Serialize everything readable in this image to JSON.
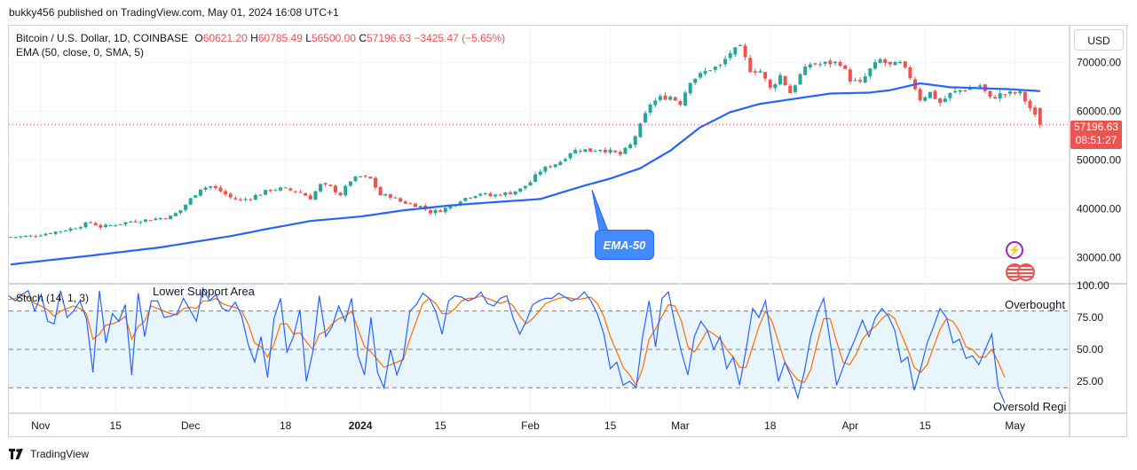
{
  "header": {
    "publisher": "bukky456 published on TradingView.com, May 01, 2024 16:08 UTC+1"
  },
  "legend": {
    "symbol": "Bitcoin / U.S. Dollar, 1D, COINBASE",
    "o_label": "O",
    "o": "60621.20",
    "h_label": "H",
    "h": "60785.49",
    "l_label": "L",
    "l": "56500.00",
    "c_label": "C",
    "c": "57196.63",
    "change": "−3425.47 (−5.65%)",
    "ema": "EMA (50, close, 0, SMA, 5)",
    "stoch": "Stoch (14, 1, 3)"
  },
  "currency_button": "USD",
  "price_tag": {
    "price": "57196.63",
    "countdown": "08:51:27"
  },
  "annotations": {
    "ema_callout": "EMA-50",
    "lower_support": "Lower Support Area",
    "overbought": "Overbought",
    "oversold": "Oversold Regi"
  },
  "footer": {
    "brand": "TradingView"
  },
  "colors": {
    "up": "#26a69a",
    "down": "#ef5350",
    "ema": "#2962ff",
    "stoch_k": "#2962ff",
    "stoch_d": "#ff6d00",
    "stoch_band": "#e3f2fd"
  },
  "chart_data": [
    {
      "type": "candlestick",
      "title": "Bitcoin / U.S. Dollar, 1D, COINBASE",
      "ylim": [
        25000,
        77500
      ],
      "y_ticks": [
        "70000.00",
        "60000.00",
        "50000.00",
        "40000.00",
        "30000.00"
      ],
      "x_ticks": [
        "Nov",
        "15",
        "Dec",
        "18",
        "2024",
        "15",
        "Feb",
        "15",
        "Mar",
        "18",
        "Apr",
        "15",
        "May"
      ],
      "last_close": 57196.63,
      "price_path": [
        [
          0,
          34200
        ],
        [
          4,
          34400
        ],
        [
          8,
          35100
        ],
        [
          12,
          35900
        ],
        [
          16,
          37200
        ],
        [
          18,
          36300
        ],
        [
          20,
          36600
        ],
        [
          24,
          37400
        ],
        [
          28,
          37800
        ],
        [
          32,
          38400
        ],
        [
          34,
          39700
        ],
        [
          36,
          42000
        ],
        [
          38,
          44200
        ],
        [
          40,
          44600
        ],
        [
          42,
          43600
        ],
        [
          44,
          42300
        ],
        [
          46,
          41700
        ],
        [
          48,
          42300
        ],
        [
          52,
          43900
        ],
        [
          54,
          44100
        ],
        [
          56,
          43800
        ],
        [
          58,
          43300
        ],
        [
          60,
          42200
        ],
        [
          62,
          44900
        ],
        [
          64,
          44400
        ],
        [
          66,
          42900
        ],
        [
          68,
          45800
        ],
        [
          70,
          46600
        ],
        [
          72,
          46100
        ],
        [
          74,
          42800
        ],
        [
          76,
          42600
        ],
        [
          78,
          41500
        ],
        [
          80,
          41000
        ],
        [
          82,
          40500
        ],
        [
          84,
          39300
        ],
        [
          86,
          39700
        ],
        [
          88,
          40500
        ],
        [
          90,
          41800
        ],
        [
          92,
          42600
        ],
        [
          94,
          43200
        ],
        [
          96,
          42600
        ],
        [
          98,
          43000
        ],
        [
          100,
          43300
        ],
        [
          102,
          44000
        ],
        [
          104,
          45500
        ],
        [
          106,
          47800
        ],
        [
          108,
          48800
        ],
        [
          110,
          49700
        ],
        [
          112,
          51600
        ],
        [
          114,
          52200
        ],
        [
          116,
          51900
        ],
        [
          118,
          52300
        ],
        [
          120,
          51700
        ],
        [
          122,
          51100
        ],
        [
          124,
          53000
        ],
        [
          126,
          57000
        ],
        [
          128,
          61500
        ],
        [
          130,
          62700
        ],
        [
          132,
          63000
        ],
        [
          134,
          61700
        ],
        [
          136,
          66300
        ],
        [
          138,
          67400
        ],
        [
          140,
          68700
        ],
        [
          142,
          69200
        ],
        [
          144,
          72000
        ],
        [
          146,
          72900
        ],
        [
          148,
          68500
        ],
        [
          150,
          68200
        ],
        [
          152,
          64600
        ],
        [
          154,
          67300
        ],
        [
          156,
          63800
        ],
        [
          158,
          67400
        ],
        [
          160,
          69700
        ],
        [
          162,
          69600
        ],
        [
          164,
          69900
        ],
        [
          166,
          69900
        ],
        [
          168,
          66500
        ],
        [
          170,
          65600
        ],
        [
          172,
          68500
        ],
        [
          174,
          70500
        ],
        [
          176,
          69300
        ],
        [
          178,
          69700
        ],
        [
          180,
          67000
        ],
        [
          182,
          62500
        ],
        [
          184,
          63800
        ],
        [
          186,
          61700
        ],
        [
          188,
          63500
        ],
        [
          190,
          64300
        ],
        [
          192,
          64700
        ],
        [
          194,
          65300
        ],
        [
          196,
          62600
        ],
        [
          198,
          63400
        ],
        [
          200,
          63600
        ],
        [
          202,
          63700
        ],
        [
          204,
          60600
        ],
        [
          206,
          57196.63
        ]
      ],
      "ema_path": [
        [
          0,
          28600
        ],
        [
          16,
          30400
        ],
        [
          30,
          32100
        ],
        [
          44,
          34400
        ],
        [
          52,
          36000
        ],
        [
          60,
          37500
        ],
        [
          70,
          38400
        ],
        [
          78,
          39600
        ],
        [
          88,
          40700
        ],
        [
          96,
          41300
        ],
        [
          106,
          42000
        ],
        [
          114,
          44500
        ],
        [
          120,
          46200
        ],
        [
          126,
          48300
        ],
        [
          132,
          51900
        ],
        [
          138,
          56700
        ],
        [
          144,
          59800
        ],
        [
          150,
          61500
        ],
        [
          158,
          62700
        ],
        [
          164,
          63600
        ],
        [
          172,
          63800
        ],
        [
          176,
          64300
        ],
        [
          182,
          65700
        ],
        [
          188,
          64900
        ],
        [
          194,
          64700
        ],
        [
          200,
          64500
        ],
        [
          206,
          64100
        ]
      ]
    },
    {
      "type": "line",
      "title": "Stoch (14, 1, 3)",
      "ylim": [
        0,
        100
      ],
      "y_ticks": [
        "100.00",
        "75.00",
        "50.00",
        "25.00"
      ],
      "bands": [
        80,
        50,
        20
      ],
      "series": [
        {
          "name": "%K",
          "values": [
            92,
            88,
            93,
            96,
            80,
            93,
            72,
            70,
            96,
            75,
            80,
            88,
            74,
            32,
            96,
            55,
            78,
            72,
            85,
            30,
            94,
            60,
            88,
            88,
            75,
            76,
            78,
            90,
            81,
            72,
            98,
            88,
            93,
            82,
            80,
            87,
            76,
            54,
            40,
            60,
            28,
            74,
            90,
            48,
            60,
            81,
            25,
            48,
            92,
            60,
            68,
            84,
            72,
            90,
            45,
            30,
            75,
            32,
            20,
            50,
            30,
            44,
            80,
            85,
            94,
            90,
            80,
            62,
            88,
            92,
            91,
            88,
            90,
            95,
            86,
            84,
            90,
            92,
            74,
            62,
            72,
            85,
            88,
            90,
            90,
            94,
            91,
            88,
            90,
            95,
            88,
            78,
            62,
            35,
            40,
            22,
            25,
            20,
            60,
            88,
            52,
            90,
            95,
            70,
            48,
            30,
            60,
            72,
            65,
            50,
            60,
            35,
            44,
            22,
            50,
            82,
            75,
            88,
            55,
            25,
            40,
            28,
            12,
            32,
            60,
            78,
            90,
            56,
            22,
            36,
            48,
            60,
            73,
            60,
            75,
            82,
            76,
            65,
            40,
            44,
            18,
            35,
            55,
            68,
            82,
            75,
            55,
            58,
            43,
            45,
            38,
            50,
            62,
            20,
            8
          ]
        },
        {
          "name": "%D",
          "values": [
            89,
            90,
            92,
            91,
            86,
            84,
            81,
            76,
            80,
            82,
            84,
            82,
            78,
            58,
            62,
            69,
            70,
            72,
            76,
            58,
            68,
            72,
            84,
            82,
            80,
            78,
            77,
            82,
            83,
            82,
            88,
            88,
            90,
            86,
            84,
            83,
            80,
            70,
            55,
            52,
            44,
            54,
            70,
            70,
            62,
            63,
            56,
            50,
            62,
            64,
            70,
            74,
            76,
            80,
            66,
            52,
            48,
            42,
            36,
            38,
            40,
            42,
            58,
            72,
            86,
            90,
            86,
            78,
            78,
            82,
            88,
            90,
            90,
            92,
            90,
            88,
            86,
            88,
            84,
            76,
            70,
            74,
            80,
            86,
            88,
            90,
            91,
            90,
            89,
            90,
            91,
            86,
            76,
            60,
            48,
            36,
            30,
            22,
            35,
            58,
            66,
            76,
            85,
            84,
            72,
            52,
            48,
            56,
            65,
            62,
            58,
            50,
            44,
            36,
            36,
            52,
            68,
            80,
            72,
            56,
            40,
            32,
            26,
            24,
            34,
            55,
            74,
            74,
            56,
            40,
            38,
            46,
            58,
            64,
            68,
            74,
            78,
            74,
            62,
            50,
            36,
            32,
            38,
            52,
            66,
            74,
            72,
            64,
            52,
            50,
            44,
            44,
            50,
            40,
            28
          ]
        }
      ]
    }
  ]
}
